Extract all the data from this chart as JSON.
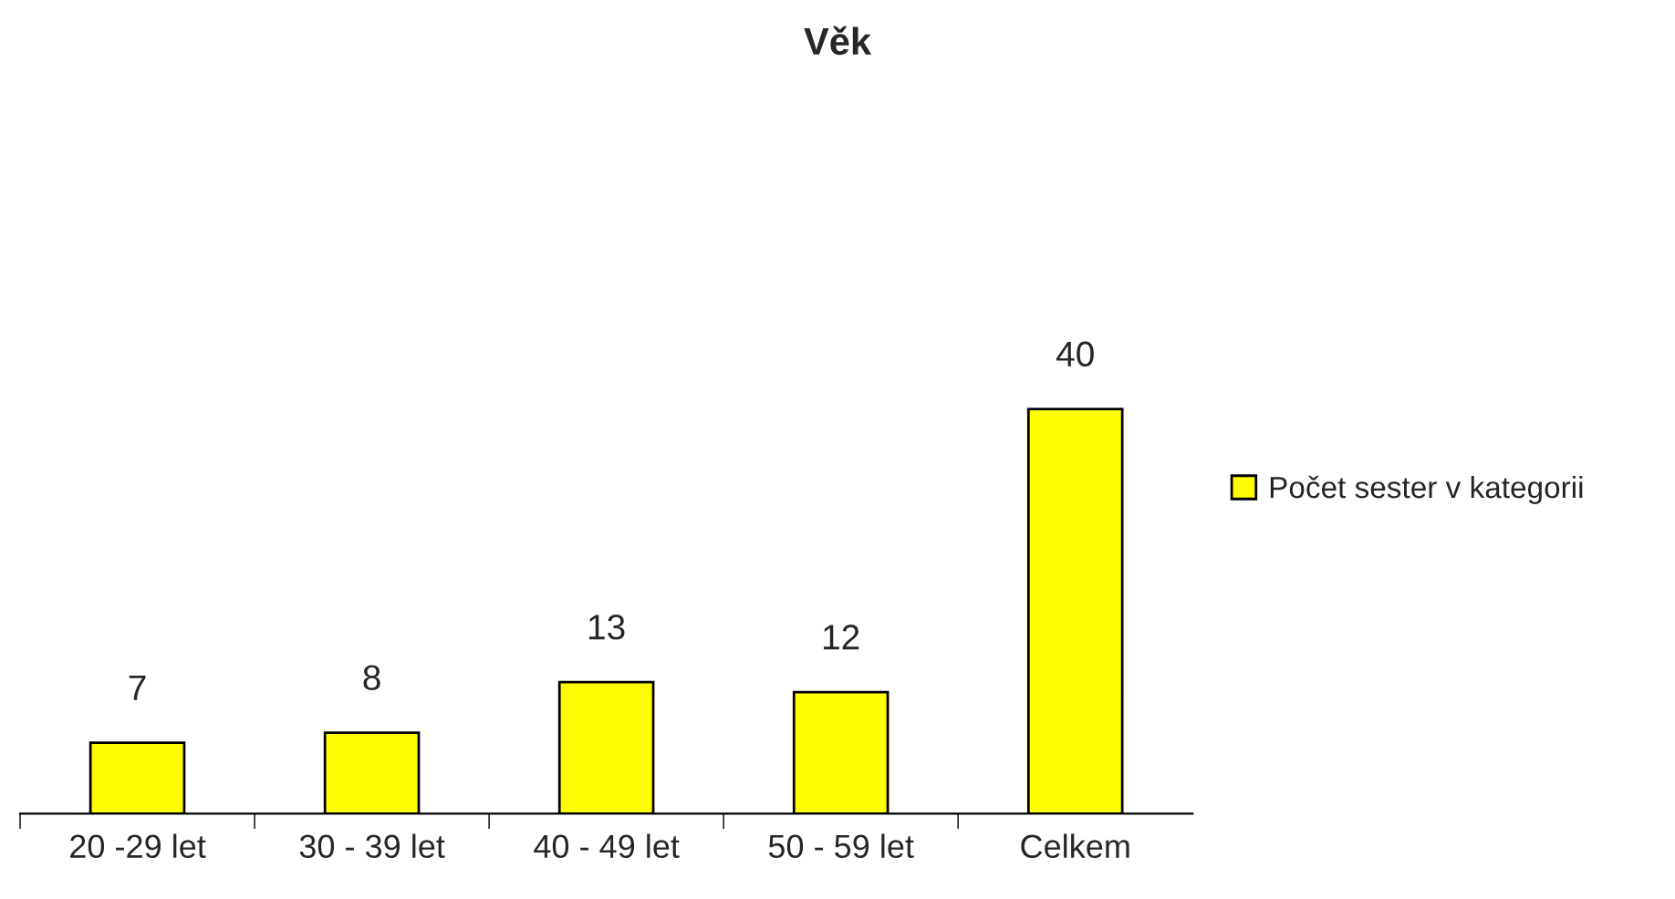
{
  "chart_data": {
    "type": "bar",
    "title": "Věk",
    "categories": [
      "20 -29 let",
      "30 - 39 let",
      "40 - 49 let",
      "50 - 59 let",
      "Celkem"
    ],
    "series": [
      {
        "name": "Počet sester v kategorii",
        "color": "#ffff00",
        "values": [
          7,
          8,
          13,
          12,
          40
        ]
      }
    ],
    "data_labels": true,
    "legend": "right",
    "grid": false
  }
}
